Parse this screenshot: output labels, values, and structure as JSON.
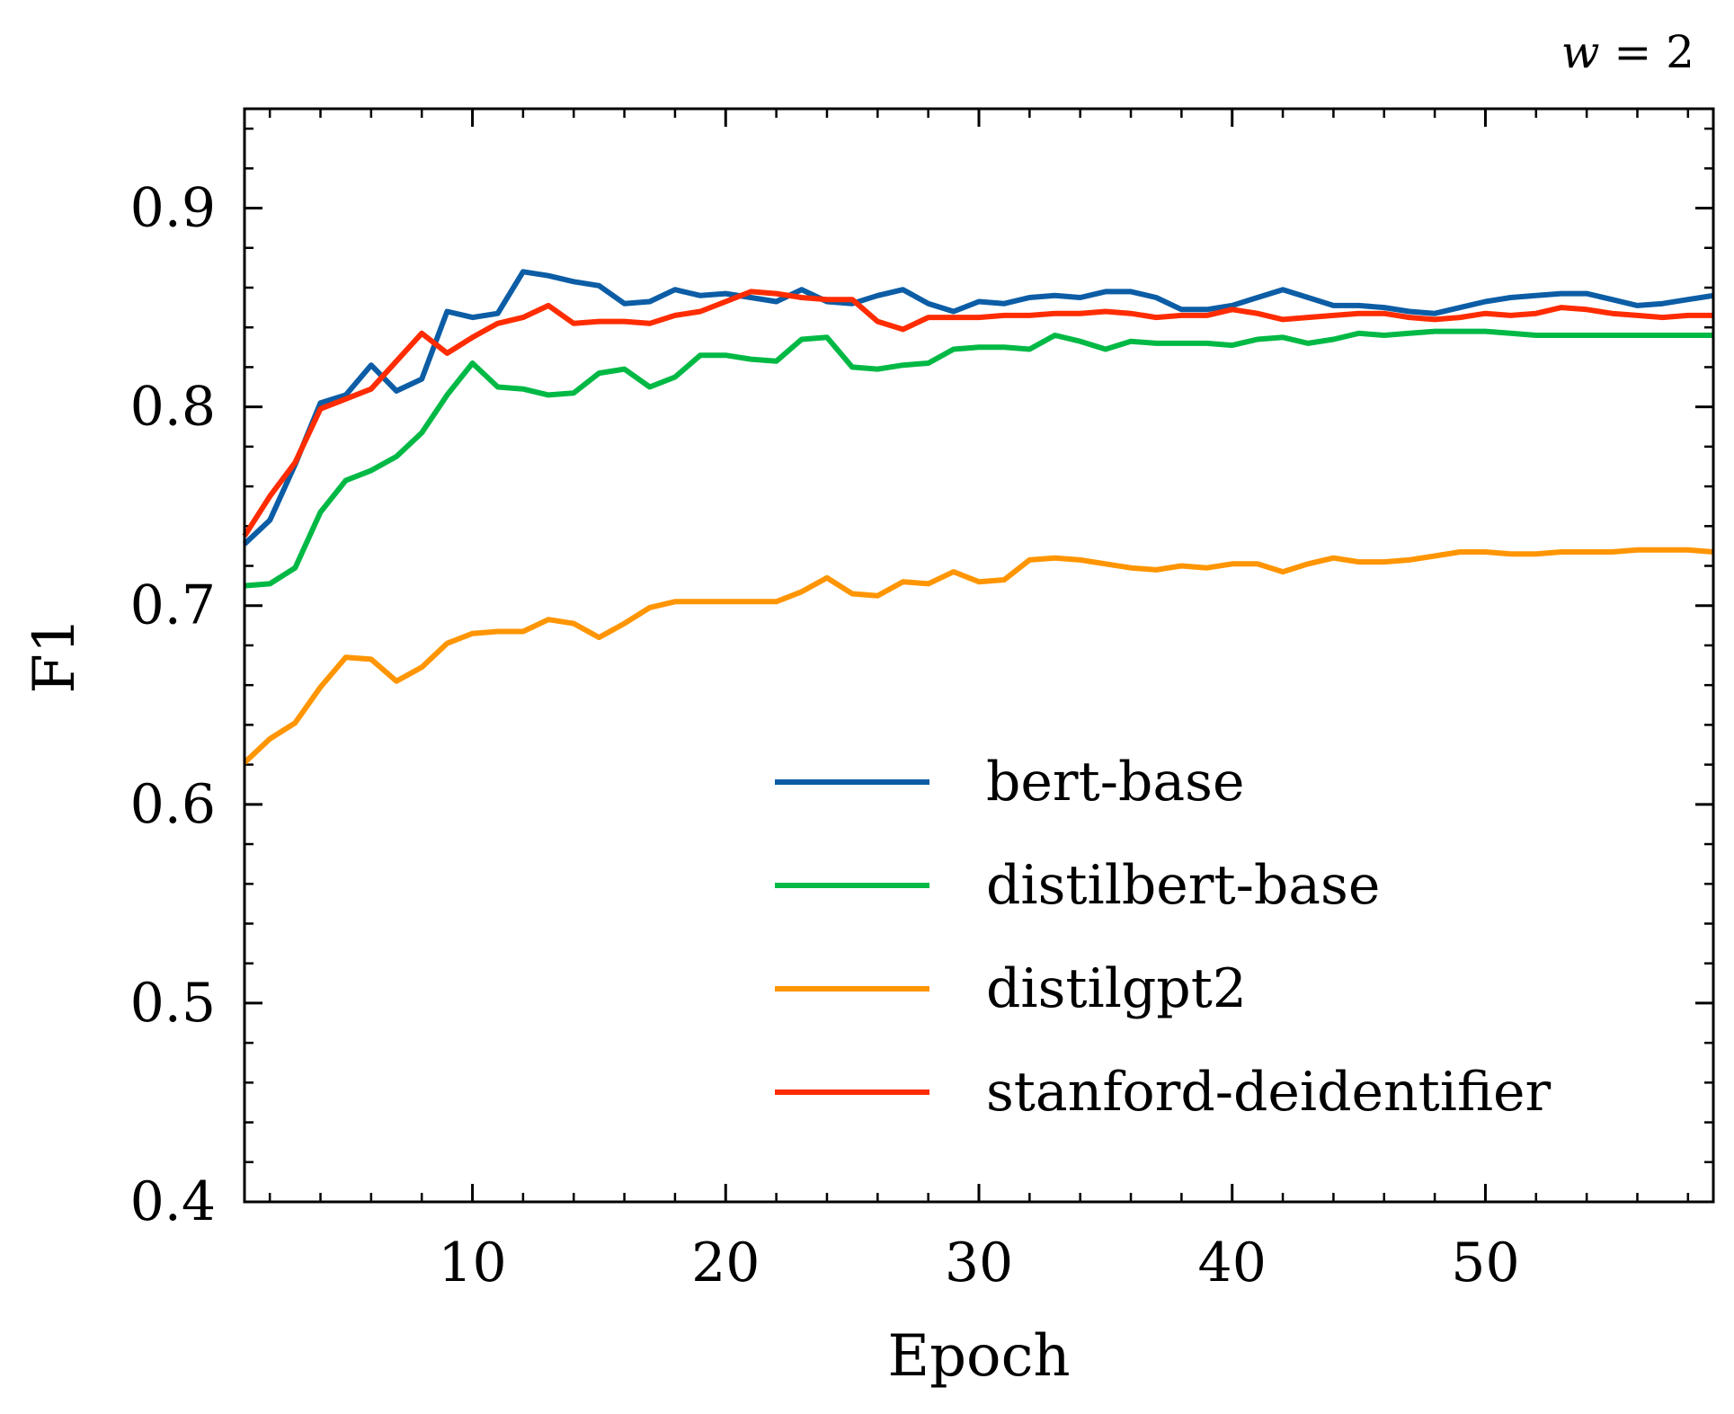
{
  "chart_data": {
    "type": "line",
    "title": "",
    "annotation": "w = 2",
    "xlabel": "Epoch",
    "ylabel": "F1",
    "xlim": [
      1,
      59
    ],
    "ylim": [
      0.4,
      0.95
    ],
    "xticks": [
      10,
      20,
      30,
      40,
      50
    ],
    "xtick_labels": [
      "10",
      "20",
      "30",
      "40",
      "50"
    ],
    "yticks": [
      0.4,
      0.5,
      0.6,
      0.7,
      0.8,
      0.9
    ],
    "ytick_labels": [
      "0.4",
      "0.5",
      "0.6",
      "0.7",
      "0.8",
      "0.9"
    ],
    "grid": false,
    "legend_position": "lower-right",
    "x": [
      1,
      2,
      3,
      4,
      5,
      6,
      7,
      8,
      9,
      10,
      11,
      12,
      13,
      14,
      15,
      16,
      17,
      18,
      19,
      20,
      21,
      22,
      23,
      24,
      25,
      26,
      27,
      28,
      29,
      30,
      31,
      32,
      33,
      34,
      35,
      36,
      37,
      38,
      39,
      40,
      41,
      42,
      43,
      44,
      45,
      46,
      47,
      48,
      49,
      50,
      51,
      52,
      53,
      54,
      55,
      56,
      57,
      58,
      59
    ],
    "series": [
      {
        "name": "bert-base",
        "color": "#0C5DA5",
        "values": [
          0.731,
          0.743,
          0.771,
          0.802,
          0.806,
          0.821,
          0.808,
          0.814,
          0.848,
          0.845,
          0.847,
          0.868,
          0.866,
          0.863,
          0.861,
          0.852,
          0.853,
          0.859,
          0.856,
          0.857,
          0.855,
          0.853,
          0.859,
          0.853,
          0.852,
          0.856,
          0.859,
          0.852,
          0.848,
          0.853,
          0.852,
          0.855,
          0.856,
          0.855,
          0.858,
          0.858,
          0.855,
          0.849,
          0.849,
          0.851,
          0.855,
          0.859,
          0.855,
          0.851,
          0.851,
          0.85,
          0.848,
          0.847,
          0.85,
          0.853,
          0.855,
          0.856,
          0.857,
          0.857,
          0.854,
          0.851,
          0.852,
          0.854,
          0.856
        ]
      },
      {
        "name": "distilbert-base",
        "color": "#00B945",
        "values": [
          0.71,
          0.711,
          0.719,
          0.747,
          0.763,
          0.768,
          0.775,
          0.787,
          0.806,
          0.822,
          0.81,
          0.809,
          0.806,
          0.807,
          0.817,
          0.819,
          0.81,
          0.815,
          0.826,
          0.826,
          0.824,
          0.823,
          0.834,
          0.835,
          0.82,
          0.819,
          0.821,
          0.822,
          0.829,
          0.83,
          0.83,
          0.829,
          0.836,
          0.833,
          0.829,
          0.833,
          0.832,
          0.832,
          0.832,
          0.831,
          0.834,
          0.835,
          0.832,
          0.834,
          0.837,
          0.836,
          0.837,
          0.838,
          0.838,
          0.838,
          0.837,
          0.836,
          0.836,
          0.836,
          0.836,
          0.836,
          0.836,
          0.836,
          0.836
        ]
      },
      {
        "name": "distilgpt2",
        "color": "#FF9500",
        "values": [
          0.621,
          0.633,
          0.641,
          0.659,
          0.674,
          0.673,
          0.662,
          0.669,
          0.681,
          0.686,
          0.687,
          0.687,
          0.693,
          0.691,
          0.684,
          0.691,
          0.699,
          0.702,
          0.702,
          0.702,
          0.702,
          0.702,
          0.707,
          0.714,
          0.706,
          0.705,
          0.712,
          0.711,
          0.717,
          0.712,
          0.713,
          0.723,
          0.724,
          0.723,
          0.721,
          0.719,
          0.718,
          0.72,
          0.719,
          0.721,
          0.721,
          0.717,
          0.721,
          0.724,
          0.722,
          0.722,
          0.723,
          0.725,
          0.727,
          0.727,
          0.726,
          0.726,
          0.727,
          0.727,
          0.727,
          0.728,
          0.728,
          0.728,
          0.727
        ]
      },
      {
        "name": "stanford-deidentifier",
        "color": "#FF2C00",
        "values": [
          0.735,
          0.755,
          0.772,
          0.799,
          0.804,
          0.809,
          0.823,
          0.837,
          0.827,
          0.835,
          0.842,
          0.845,
          0.851,
          0.842,
          0.843,
          0.843,
          0.842,
          0.846,
          0.848,
          0.853,
          0.858,
          0.857,
          0.855,
          0.854,
          0.854,
          0.843,
          0.839,
          0.845,
          0.845,
          0.845,
          0.846,
          0.846,
          0.847,
          0.847,
          0.848,
          0.847,
          0.845,
          0.846,
          0.846,
          0.849,
          0.847,
          0.844,
          0.845,
          0.846,
          0.847,
          0.847,
          0.845,
          0.844,
          0.845,
          0.847,
          0.846,
          0.847,
          0.85,
          0.849,
          0.847,
          0.846,
          0.845,
          0.846,
          0.846
        ]
      }
    ]
  }
}
